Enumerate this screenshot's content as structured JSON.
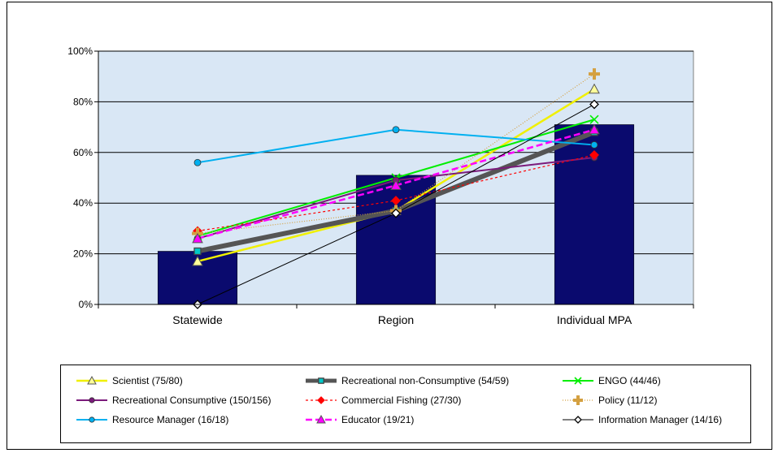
{
  "chart_data": {
    "type": "bar",
    "categories": [
      "Statewide",
      "Region",
      "Individual MPA"
    ],
    "y_ticks": [
      "0%",
      "20%",
      "40%",
      "60%",
      "80%",
      "100%"
    ],
    "ylim": [
      0,
      100
    ],
    "grid": true,
    "plot_background": "#d9e7f5",
    "legend_position": "bottom",
    "bars": {
      "color": "#0a0a6e",
      "values": [
        21,
        51,
        71
      ]
    },
    "series": [
      {
        "name": "Scientist (75/80)",
        "color": "#f0f000",
        "marker": "triangle",
        "marker_fill": "#ffff99",
        "dash": "",
        "width": 2.5,
        "values": [
          17,
          37,
          85
        ]
      },
      {
        "name": "Recreational non-Consumptive (54/59)",
        "color": "#555555",
        "marker": "square",
        "marker_fill": "#ffffff",
        "dash": "",
        "width": 6,
        "values": [
          21,
          37,
          68
        ]
      },
      {
        "name": "ENGO (44/46)",
        "color": "#00ee00",
        "marker": "x",
        "marker_fill": "none",
        "dash": "",
        "width": 2,
        "values": [
          27,
          50,
          73
        ]
      },
      {
        "name": "Recreational Consumptive (150/156)",
        "color": "#7b1a7b",
        "marker": "circle",
        "marker_fill": "#7b1a7b",
        "dash": "",
        "width": 2,
        "values": [
          26,
          49,
          58
        ]
      },
      {
        "name": "Commercial Fishing (27/30)",
        "color": "#ff0000",
        "marker": "diamond",
        "marker_fill": "#ff0000",
        "dash": "3,3",
        "width": 1.2,
        "values": [
          29,
          41,
          59
        ]
      },
      {
        "name": "Policy (11/12)",
        "color": "#d4a040",
        "marker": "plus",
        "marker_fill": "#d4a040",
        "dash": "1,2",
        "width": 1.2,
        "values": [
          28,
          37,
          91
        ]
      },
      {
        "name": "Resource Manager (16/18)",
        "color": "#00b0f0",
        "marker": "circle",
        "marker_fill": "#00b0f0",
        "dash": "",
        "width": 2,
        "values": [
          56,
          69,
          63
        ]
      },
      {
        "name": "Educator (19/21)",
        "color": "#ff00ff",
        "marker": "triangle",
        "marker_fill": "#ff00ff",
        "dash": "8,4",
        "width": 2.5,
        "values": [
          26,
          47,
          69
        ]
      },
      {
        "name": "Information Manager (14/16)",
        "color": "#000000",
        "marker": "diamond",
        "marker_fill": "#ffffff",
        "dash": "",
        "width": 1,
        "values": [
          0,
          36,
          79
        ]
      }
    ]
  }
}
